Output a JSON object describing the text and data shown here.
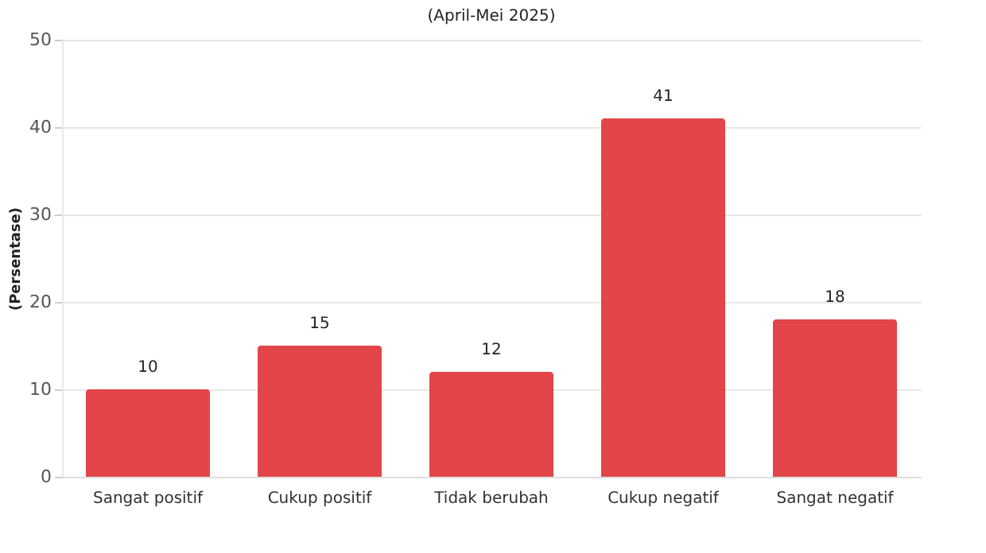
{
  "chart_data": {
    "type": "bar",
    "subtitle": "(April-Mei 2025)",
    "ylabel": "(Persentase)",
    "categories": [
      "Sangat positif",
      "Cukup positif",
      "Tidak berubah",
      "Cukup negatif",
      "Sangat negatif"
    ],
    "values": [
      10,
      15,
      12,
      41,
      18
    ],
    "color": "#e03c3f",
    "ylim": [
      0,
      50
    ],
    "yticks": [
      0,
      10,
      20,
      30,
      40,
      50
    ],
    "grid": "y",
    "data_labels": true
  }
}
